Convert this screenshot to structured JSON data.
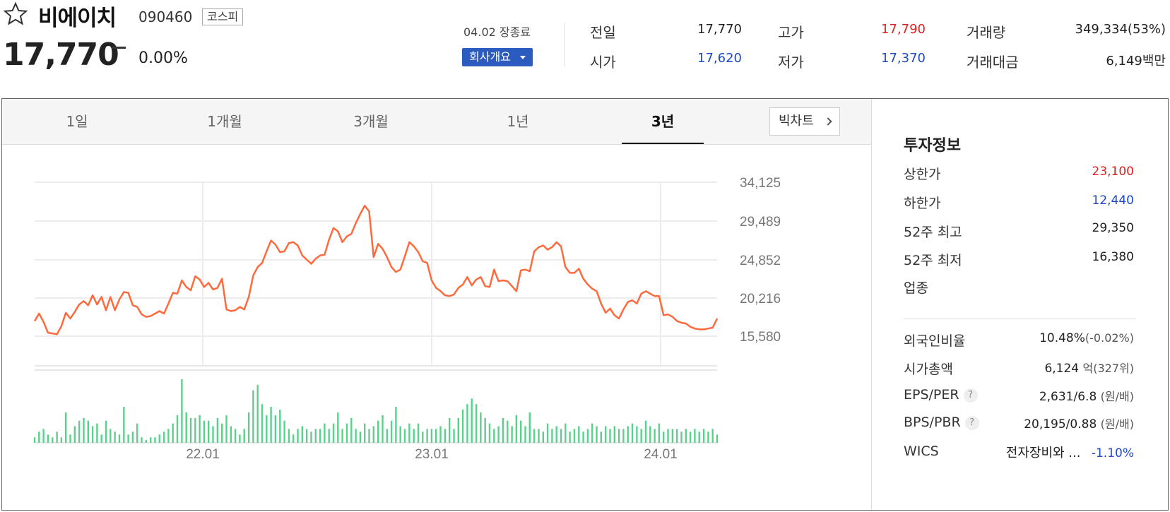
{
  "header": {
    "name": "비에이치",
    "code": "090460",
    "market": "코스피",
    "price": "17,770",
    "change": "0.00%",
    "close_info": "04.02 장종료",
    "company_button": "회사개요"
  },
  "quote": {
    "prev_label": "전일",
    "prev_value": "17,770",
    "open_label": "시가",
    "open_value": "17,620",
    "high_label": "고가",
    "high_value": "17,790",
    "low_label": "저가",
    "low_value": "17,370",
    "volume_label": "거래량",
    "volume_value": "349,334(53%)",
    "amount_label": "거래대금",
    "amount_value": "6,149",
    "amount_unit": "백만"
  },
  "tabs": [
    "1일",
    "1개월",
    "3개월",
    "1년",
    "3년"
  ],
  "active_tab": "3년",
  "big_chart_label": "빅차트",
  "invest": {
    "title": "투자정보",
    "upper_label": "상한가",
    "upper_value": "23,100",
    "lower_label": "하한가",
    "lower_value": "12,440",
    "w52_high_label": "52주 최고",
    "w52_high_value": "29,350",
    "w52_low_label": "52주 최저",
    "w52_low_value": "16,380",
    "industry_label": "업종",
    "foreign_label": "외국인비율",
    "foreign_value": "10.48%",
    "foreign_change": "(-0.02%)",
    "mcap_label": "시가총액",
    "mcap_value": "6,124",
    "mcap_unit": "억",
    "mcap_rank": "(327위)",
    "eps_label": "EPS/PER",
    "eps_value": "2,631/6.8",
    "eps_unit": "(원/배)",
    "bps_label": "BPS/PBR",
    "bps_value": "20,195/0.88",
    "bps_unit": "(원/배)",
    "wics_label": "WICS",
    "wics_value": "전자장비와 ...",
    "wics_change": "-1.10%",
    "help_mark": "?"
  },
  "colors": {
    "up": "#e02020",
    "down": "#1e48c9",
    "price_line": "#ff6a3d",
    "volume_bar": "#5ad18a",
    "button": "#2c5bbf"
  },
  "chart_data": {
    "type": "line",
    "y_ticks": [
      "34,125",
      "29,489",
      "24,852",
      "20,216",
      "15,580"
    ],
    "x_ticks": [
      "22.01",
      "23.01",
      "24.01"
    ],
    "ylim": [
      15580,
      34125
    ],
    "price": [
      17400,
      18300,
      17300,
      16000,
      15900,
      15800,
      16800,
      18400,
      17700,
      18500,
      19400,
      19800,
      19300,
      20500,
      19400,
      20300,
      18700,
      20300,
      18700,
      20000,
      20900,
      20800,
      19300,
      19100,
      18200,
      17900,
      18000,
      18300,
      18600,
      18300,
      19500,
      20800,
      20700,
      22300,
      21500,
      21100,
      22800,
      22400,
      21500,
      22000,
      21200,
      21400,
      22500,
      18800,
      18600,
      18700,
      19100,
      18800,
      20300,
      22900,
      23900,
      24400,
      25800,
      27100,
      26600,
      25700,
      25800,
      26800,
      26900,
      26500,
      25300,
      24800,
      24300,
      24900,
      25300,
      25400,
      27200,
      28600,
      28200,
      26900,
      27600,
      27900,
      29200,
      30300,
      31300,
      30600,
      25100,
      26700,
      26100,
      25100,
      23900,
      23300,
      23600,
      25200,
      26900,
      26400,
      25700,
      24600,
      24400,
      22300,
      21400,
      21000,
      20500,
      20400,
      20600,
      21400,
      21800,
      22700,
      21700,
      22400,
      22700,
      21600,
      21500,
      23600,
      22200,
      22300,
      22200,
      21600,
      21000,
      23500,
      23600,
      23400,
      25800,
      26300,
      26500,
      26000,
      26300,
      26900,
      26400,
      23900,
      23200,
      23200,
      23700,
      22500,
      21800,
      21300,
      21000,
      19500,
      18400,
      18900,
      18100,
      17700,
      18800,
      19700,
      19900,
      19500,
      20700,
      21000,
      20700,
      20400,
      20400,
      18100,
      18200,
      17900,
      17400,
      17200,
      17100,
      16700,
      16500,
      16400,
      16400,
      16500,
      16600,
      17700
    ]
  },
  "volume_data": [
    4,
    8,
    10,
    6,
    4,
    8,
    4,
    22,
    6,
    12,
    16,
    18,
    16,
    12,
    14,
    6,
    16,
    10,
    8,
    6,
    26,
    6,
    8,
    14,
    4,
    2,
    4,
    4,
    6,
    8,
    10,
    14,
    20,
    46,
    22,
    18,
    18,
    20,
    16,
    16,
    12,
    18,
    14,
    20,
    12,
    10,
    6,
    10,
    22,
    38,
    42,
    28,
    20,
    26,
    20,
    24,
    16,
    10,
    6,
    10,
    12,
    10,
    8,
    10,
    10,
    14,
    10,
    14,
    22,
    10,
    14,
    18,
    10,
    8,
    14,
    10,
    12,
    16,
    20,
    10,
    16,
    26,
    12,
    10,
    14,
    10,
    14,
    8,
    10,
    10,
    10,
    12,
    10,
    18,
    10,
    18,
    24,
    28,
    32,
    28,
    22,
    18,
    14,
    10,
    12,
    18,
    16,
    12,
    20,
    16,
    12,
    22,
    10,
    10,
    8,
    14,
    10,
    12,
    10,
    14,
    8,
    10,
    12,
    8,
    10,
    14,
    12,
    8,
    12,
    10,
    12,
    10,
    10,
    12,
    14,
    12,
    10,
    16,
    12,
    10,
    14,
    8,
    10,
    10,
    10,
    8,
    10,
    8,
    10,
    8,
    10,
    8,
    10,
    6
  ]
}
